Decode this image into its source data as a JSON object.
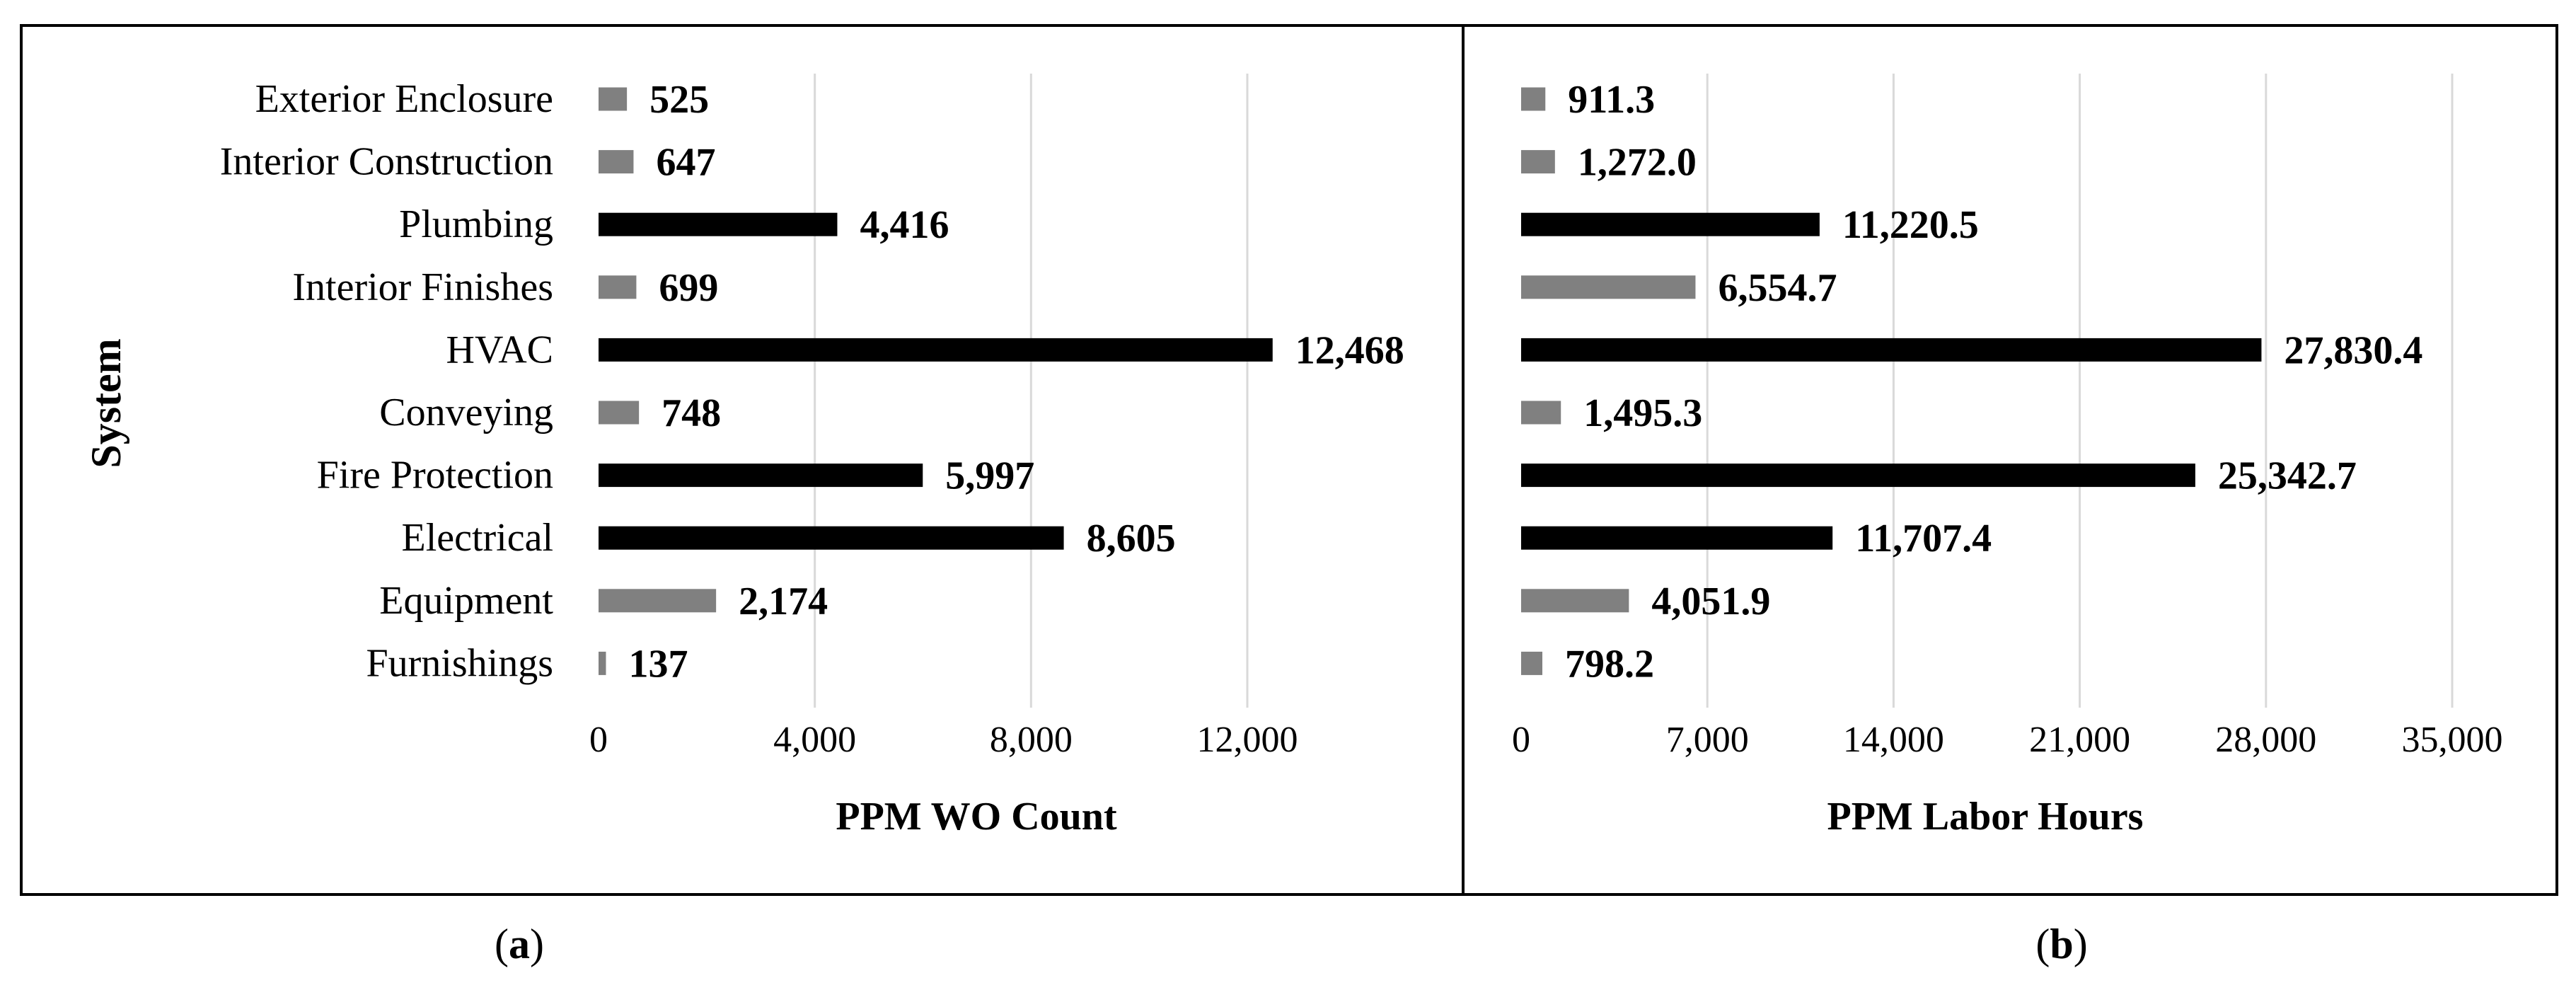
{
  "colors": {
    "highlight": "#000000",
    "regular": "#808080",
    "grid": "#d9d9d9",
    "frame": "#000000"
  },
  "y_axis_title": "System",
  "captions": {
    "a": "a",
    "b": "b"
  },
  "chart_data": [
    {
      "type": "bar",
      "orientation": "horizontal",
      "panel": "a",
      "xlabel": "PPM WO  Count",
      "ylabel": "System",
      "xlim": [
        0,
        12000
      ],
      "xticks": [
        0,
        4000,
        8000,
        12000
      ],
      "xtick_labels": [
        "0",
        "4,000",
        "8,000",
        "12,000"
      ],
      "grid": true,
      "categories": [
        "Exterior Enclosure",
        "Interior Construction",
        "Plumbing",
        "Interior Finishes",
        "HVAC",
        "Conveying",
        "Fire Protection",
        "Electrical",
        "Equipment",
        "Furnishings"
      ],
      "values": [
        525,
        647,
        4416,
        699,
        12468,
        748,
        5997,
        8605,
        2174,
        137
      ],
      "value_labels": [
        "525",
        "647",
        "4,416",
        "699",
        "12,468",
        "748",
        "5,997",
        "8,605",
        "2,174",
        "137"
      ],
      "highlighted": [
        false,
        false,
        true,
        false,
        true,
        false,
        true,
        true,
        false,
        false
      ]
    },
    {
      "type": "bar",
      "orientation": "horizontal",
      "panel": "b",
      "xlabel": "PPM Labor Hours",
      "ylabel": "",
      "xlim": [
        0,
        35000
      ],
      "xticks": [
        0,
        7000,
        14000,
        21000,
        28000,
        35000
      ],
      "xtick_labels": [
        "0",
        "7,000",
        "14,000",
        "21,000",
        "28,000",
        "35,000"
      ],
      "grid": true,
      "categories": [
        "Exterior Enclosure",
        "Interior Construction",
        "Plumbing",
        "Interior Finishes",
        "HVAC",
        "Conveying",
        "Fire Protection",
        "Electrical",
        "Equipment",
        "Furnishings"
      ],
      "values": [
        911.3,
        1272.0,
        11220.5,
        6554.7,
        27830.4,
        1495.3,
        25342.7,
        11707.4,
        4051.9,
        798.2
      ],
      "value_labels": [
        "911.3",
        "1,272.0",
        "11,220.5",
        "6,554.7",
        "27,830.4",
        "1,495.3",
        "25,342.7",
        "11,707.4",
        "4,051.9",
        "798.2"
      ],
      "highlighted": [
        false,
        false,
        true,
        false,
        true,
        false,
        true,
        true,
        false,
        false
      ]
    }
  ]
}
